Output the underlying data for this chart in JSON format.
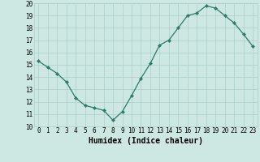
{
  "x": [
    0,
    1,
    2,
    3,
    4,
    5,
    6,
    7,
    8,
    9,
    10,
    11,
    12,
    13,
    14,
    15,
    16,
    17,
    18,
    19,
    20,
    21,
    22,
    23
  ],
  "y": [
    15.3,
    14.8,
    14.3,
    13.6,
    12.3,
    11.7,
    11.5,
    11.3,
    10.5,
    11.2,
    12.5,
    13.9,
    15.1,
    16.6,
    17.0,
    18.0,
    19.0,
    19.2,
    19.8,
    19.6,
    19.0,
    18.4,
    17.5,
    16.5
  ],
  "line_color": "#2d7a6a",
  "marker": "D",
  "marker_size": 2.2,
  "linewidth": 0.9,
  "bg_color": "#cde8e2",
  "grid_color": "#aacfc8",
  "xlabel": "Humidex (Indice chaleur)",
  "ylabel": "",
  "title": "",
  "xlim": [
    -0.5,
    23.5
  ],
  "ylim": [
    10,
    20
  ],
  "yticks": [
    10,
    11,
    12,
    13,
    14,
    15,
    16,
    17,
    18,
    19,
    20
  ],
  "xticks": [
    0,
    1,
    2,
    3,
    4,
    5,
    6,
    7,
    8,
    9,
    10,
    11,
    12,
    13,
    14,
    15,
    16,
    17,
    18,
    19,
    20,
    21,
    22,
    23
  ],
  "tick_fontsize": 5.5,
  "xlabel_fontsize": 7.0,
  "xlabel_fontweight": "bold"
}
